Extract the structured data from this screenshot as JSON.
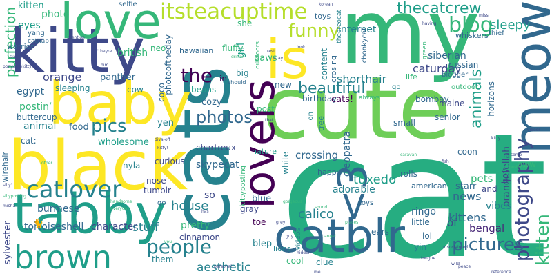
{
  "palette": [
    "#440154",
    "#482878",
    "#3e4989",
    "#31688e",
    "#26828e",
    "#1f9e89",
    "#35b779",
    "#6ece58",
    "#b5de2b",
    "#fde725"
  ],
  "words": {
    "cat": "cat",
    "cats": "cats",
    "my": "my",
    "cute": "cute",
    "kitty": "kitty",
    "black": "black",
    "baby": "baby",
    "tabby": "tabby",
    "love": "love",
    "lovers": "lovers",
    "is": "is",
    "meow": "meow",
    "catblr": "catblr",
    "catlover": "catlover",
    "brown": "brown",
    "less_than_3": "<3",
    "itsteacuptime": "itsteacuptime",
    "thecatcrew": "thecatcrew",
    "photography": "photography",
    "pictures": "pictures",
    "people": "people",
    "kitten": "kitten",
    "blog": "blog",
    "funny": "funny",
    "beautiful": "beautiful",
    "the": "the",
    "photos": "photos",
    "pics": "pics",
    "purfection": "purfection",
    "animals": "animals",
    "sleepy": "sleepy",
    "caturday": "caturday",
    "shorthair": "shorthair",
    "siberian": "siberian",
    "orange": "orange",
    "internet": "internet",
    "crossing": "crossing",
    "house": "house",
    "calico": "calico",
    "tuxedo": "tuxedo",
    "kittens": "kittens",
    "bengal": "bengal",
    "news": "news",
    "pets": "pets",
    "aesthetic": "aesthetic",
    "cleopatra": "cleopatra",
    "orangefellah": "orangefellah",
    "stuff": "stuff",
    "tortoiseshell": "tortoiseshell",
    "character": "character",
    "cinnamon": "cinnamon",
    "pretty": "pretty",
    "sylvester": "sylvester",
    "burmese": "burmese",
    "eyes": "eyes",
    "british": "british",
    "photo": "photo",
    "egypt": "egypt",
    "sleeping": "sleeping",
    "animal": "animal",
    "food": "food",
    "postin": "postin’",
    "panther": "panther",
    "wholesome": "wholesome",
    "cow": "cow",
    "coco": "coco",
    "neo": "neo",
    "hawaiian": "hawaiian",
    "photooftheday": "photooftheday",
    "skypecat": "skypecat",
    "chartreux": "chartreux",
    "cozy": "cozy",
    "beans": "beans",
    "fluffy": "fluffy",
    "paws": "paws",
    "girl": "girl",
    "she": "she",
    "in": "in",
    "big": "big",
    "outdoors": "outdoors",
    "new": "new",
    "post": "post",
    "nature": "nature",
    "content": "content",
    "white": "white",
    "blue": "blue",
    "gray": "gray",
    "blep": "blep",
    "toe": "toe",
    "lions": "lions",
    "cool": "cool",
    "clue": "clue",
    "ears": "ears",
    "yin": "yin",
    "lol": "lol",
    "adorable": "adorable",
    "ringo": "ringo",
    "starr": "starr",
    "vibes": "vibes",
    "little": "little",
    "toys": "toys",
    "american": "american",
    "happy": "happy",
    "rolls": "rolls",
    "small": "small",
    "senior": "senior",
    "bombay": "bombay",
    "maine": "maine",
    "coon": "coon",
    "boy": "boy",
    "aww": "aww",
    "and": "and",
    "birthday": "birthday",
    "cats_bang": "cats!",
    "go": "go!",
    "life": "life",
    "always": "always",
    "blogger": "blogger",
    "outdoor": "outdoor",
    "horizons": "horizons",
    "russian": "russian",
    "chonkycat": "chonkycat",
    "theoreocat": "theoreocat",
    "crosing": "crosing",
    "green": "green",
    "whiskers": "whiskers",
    "thief": "thief",
    "toys2": "toys",
    "selfie": "selfie",
    "yang": "yang",
    "warrior": "warrior",
    "catnap": "catnap",
    "buttercup": "buttercup",
    "wirehair": "wirehair",
    "cat_colon": "cat:",
    "yen": "yen",
    "nyla": "nyla",
    "curious": "curious",
    "nose": "nose",
    "tumblr": "tumblr",
    "so": "so",
    "go2": "go",
    "them": "them",
    "of": "of",
    "tree": "tree",
    "kittyposting": "kittyposting",
    "videos": "videos",
    "on": "on",
    "it": "it",
    "should": "should",
    "tiny": [
      "mention",
      "\"theyre",
      "him",
      "siamese",
      "ponyothekitty's",
      "other",
      "drifter",
      "rest",
      "stray",
      "diva-off",
      "kitty!",
      "silly\"",
      "sillyposting",
      "misha",
      "everyday",
      "handsome",
      "hidden",
      "gorgeous",
      "personal",
      "has",
      "grey",
      "guy",
      "sound",
      "angel",
      "places",
      "unsoclaimed",
      "you",
      "peace",
      "me",
      "caravan",
      "that",
      "look",
      "korean",
      "miss",
      "having",
      "videos",
      "probably",
      "some",
      "kitty",
      "wild",
      "tongue",
      "reference",
      "fish",
      "orange\""
    ]
  }
}
